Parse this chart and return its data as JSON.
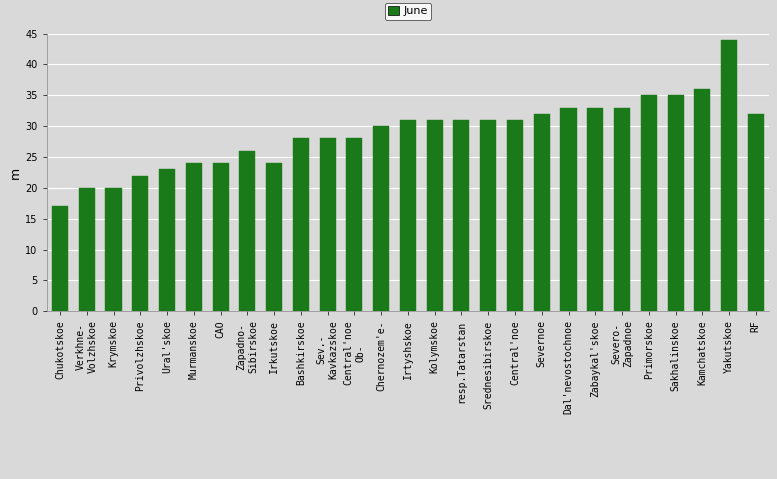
{
  "categories": [
    "Chukotskoe",
    "Verkhne-\nVolzhskoe",
    "Krymskoe",
    "Privolzhskoe",
    "Ural'skoe",
    "Murmanskoe",
    "CAO",
    "Zapadno-\nSibirskoe",
    "Irkutskoe",
    "Bashkirskoe",
    "Sev.-\nKavkazskoe",
    "Central'noe\nOb-",
    "Chernozem'e-",
    "Irtyshskoe",
    "Kolymskoe",
    "resp.Tatarstan",
    "Srednesibirskoe",
    "Central'noe",
    "Severnoe",
    "Dal'nevostochnoe",
    "Zabaykal'skoe",
    "Severo-\nZapadnoe",
    "Primorskoe",
    "Sakhalinskoe",
    "Kamchatskoe",
    "Yakutskoe",
    "RF"
  ],
  "values": [
    17,
    20,
    20,
    22,
    23,
    24,
    24,
    26,
    24,
    28,
    28,
    28,
    30,
    31,
    31,
    31,
    31,
    31,
    32,
    33,
    33,
    33,
    35,
    35,
    36,
    44,
    32
  ],
  "bar_color": "#1a7a1a",
  "bar_edge_color": "#1a7a1a",
  "ylabel": "m",
  "ylim": [
    0,
    45
  ],
  "yticks": [
    0,
    5,
    10,
    15,
    20,
    25,
    30,
    35,
    40,
    45
  ],
  "legend_label": "June",
  "legend_color": "#1a7a1a",
  "background_color": "#d9d9d9",
  "plot_bg_color": "#d9d9d9",
  "grid_color": "#ffffff",
  "tick_fontsize": 7,
  "bar_width": 0.6
}
